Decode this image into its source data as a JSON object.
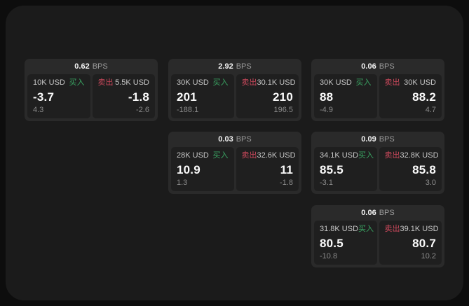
{
  "labels": {
    "bps_unit": "BPS",
    "buy": "买入",
    "sell": "卖出"
  },
  "colors": {
    "panel_bg": "#1b1b1b",
    "card_bg": "#2a2a2a",
    "tile_bg": "#1f1f1f",
    "buy": "#3aa563",
    "sell": "#c9485b"
  },
  "cards": [
    {
      "spread_bps": "0.62",
      "buy": {
        "size": "10K USD",
        "price": "-3.7",
        "delta": "4.3"
      },
      "sell": {
        "size": "5.5K USD",
        "price": "-1.8",
        "delta": "-2.6"
      }
    },
    {
      "spread_bps": "2.92",
      "buy": {
        "size": "30K USD",
        "price": "201",
        "delta": "-188.1"
      },
      "sell": {
        "size": "30.1K USD",
        "price": "210",
        "delta": "196.5"
      }
    },
    {
      "spread_bps": "0.06",
      "buy": {
        "size": "30K USD",
        "price": "88",
        "delta": "-4.9"
      },
      "sell": {
        "size": "30K USD",
        "price": "88.2",
        "delta": "4.7"
      }
    },
    {
      "spread_bps": "0.03",
      "buy": {
        "size": "28K USD",
        "price": "10.9",
        "delta": "1.3"
      },
      "sell": {
        "size": "32.6K USD",
        "price": "11",
        "delta": "-1.8"
      }
    },
    {
      "spread_bps": "0.09",
      "buy": {
        "size": "34.1K USD",
        "price": "85.5",
        "delta": "-3.1"
      },
      "sell": {
        "size": "32.8K USD",
        "price": "85.8",
        "delta": "3.0"
      }
    },
    {
      "spread_bps": "0.06",
      "buy": {
        "size": "31.8K USD",
        "price": "80.5",
        "delta": "-10.8"
      },
      "sell": {
        "size": "39.1K USD",
        "price": "80.7",
        "delta": "10.2"
      }
    }
  ]
}
